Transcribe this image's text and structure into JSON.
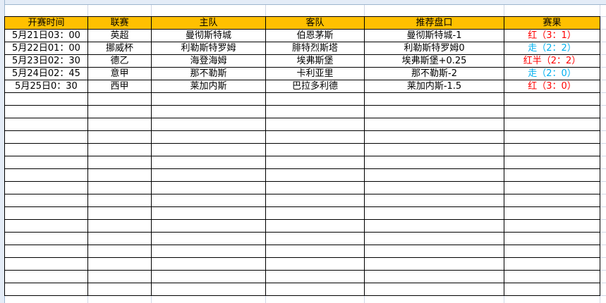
{
  "headers": [
    "开赛时间",
    "联赛",
    "主队",
    "客队",
    "推荐盘口",
    "赛果"
  ],
  "colors": {
    "header_bg": "#ffc000",
    "win": "#ff0000",
    "push": "#00b0f0"
  },
  "rows": [
    {
      "time": "5月21日03：00",
      "league": "英超",
      "home": "曼彻斯特城",
      "away": "伯恩茅斯",
      "pick": "曼彻斯特城-1",
      "result": "红（3：1）",
      "status": "win"
    },
    {
      "time": "5月22日01：00",
      "league": "挪威杯",
      "home": "利勒斯特罗姆",
      "away": "腓特烈斯塔",
      "pick": "利勒斯特罗姆0",
      "result": "走（2：2）",
      "status": "push"
    },
    {
      "time": "5月23日02：30",
      "league": "德乙",
      "home": "海登海姆",
      "away": "埃弗斯堡",
      "pick": "埃弗斯堡+0.25",
      "result": "红半（2：2）",
      "status": "win"
    },
    {
      "time": "5月24日02：45",
      "league": "意甲",
      "home": "那不勒斯",
      "away": "卡利亚里",
      "pick": "那不勒斯-2",
      "result": "走（2：0）",
      "status": "push"
    },
    {
      "time": "5月25日0：30",
      "league": "西甲",
      "home": "莱加内斯",
      "away": "巴拉多利德",
      "pick": "莱加内斯-1.5",
      "result": "红（3：0）",
      "status": "win"
    }
  ]
}
